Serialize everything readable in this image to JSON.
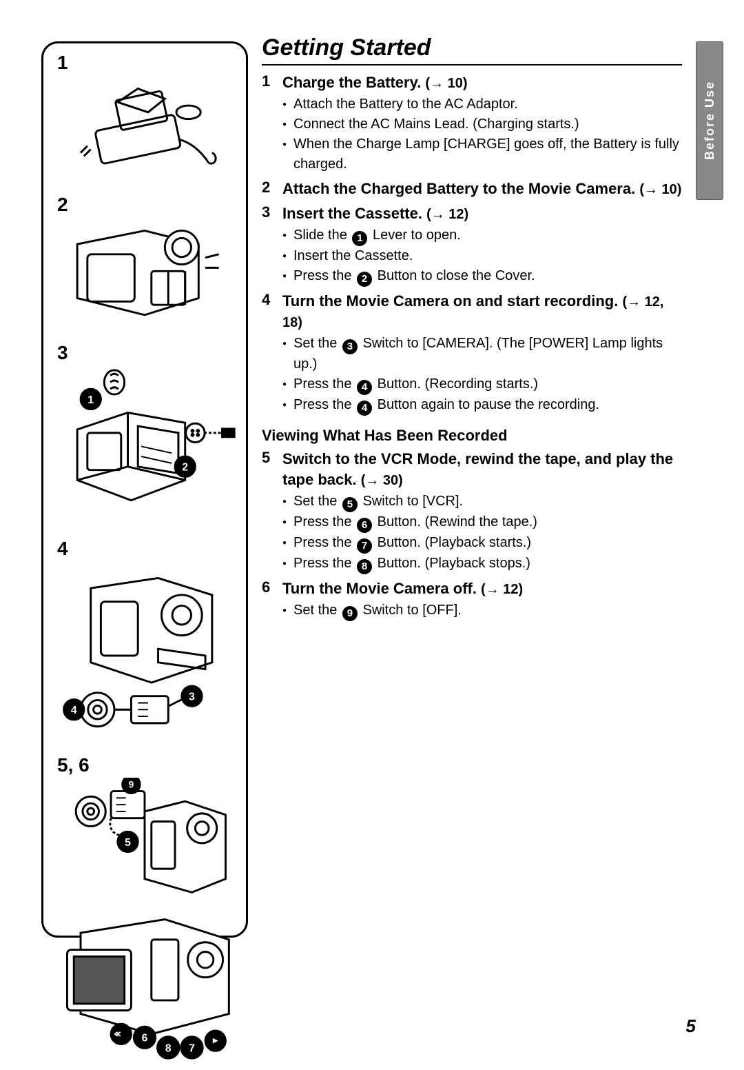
{
  "page_number": "5",
  "side_tab": "Before Use",
  "title": "Getting Started",
  "arrow": "→",
  "illus_labels": [
    "1",
    "2",
    "3",
    "4",
    "5, 6"
  ],
  "steps": [
    {
      "num": "1",
      "head": "Charge the Battery.",
      "ref": "(→ 10)",
      "sub": [
        {
          "pre": "Attach the Battery to the AC Adaptor."
        },
        {
          "pre": "Connect the AC Mains Lead. (Charging starts.)"
        },
        {
          "pre": "When the Charge Lamp [CHARGE] goes off, the Battery is fully charged."
        }
      ]
    },
    {
      "num": "2",
      "head": "Attach the Charged Battery to the Movie Camera.",
      "ref": "(→ 10)",
      "sub": []
    },
    {
      "num": "3",
      "head": "Insert the Cassette.",
      "ref": "(→ 12)",
      "sub": [
        {
          "pre": "Slide the ",
          "circ": "1",
          "post": " Lever to open."
        },
        {
          "pre": "Insert the Cassette."
        },
        {
          "pre": "Press the ",
          "circ": "2",
          "post": " Button to close the Cover."
        }
      ]
    },
    {
      "num": "4",
      "head": "Turn the Movie Camera on and start recording.",
      "ref": "(→ 12, 18)",
      "sub": [
        {
          "pre": "Set the ",
          "circ": "3",
          "post": " Switch to [CAMERA]. (The [POWER] Lamp lights up.)"
        },
        {
          "pre": "Press the ",
          "circ": "4",
          "post": " Button. (Recording starts.)"
        },
        {
          "pre": "Press the ",
          "circ": "4",
          "post": " Button again to pause the recording."
        }
      ]
    }
  ],
  "subtitle": "Viewing What Has Been Recorded",
  "steps2": [
    {
      "num": "5",
      "head": "Switch to the VCR Mode, rewind the tape, and play the tape back.",
      "ref": "(→ 30)",
      "sub": [
        {
          "pre": "Set the ",
          "circ": "5",
          "post": " Switch to [VCR]."
        },
        {
          "pre": "Press the ",
          "circ": "6",
          "post": " Button. (Rewind the tape.)"
        },
        {
          "pre": "Press the ",
          "circ": "7",
          "post": " Button. (Playback starts.)"
        },
        {
          "pre": "Press the ",
          "circ": "8",
          "post": " Button. (Playback stops.)"
        }
      ]
    },
    {
      "num": "6",
      "head": "Turn the Movie Camera off.",
      "ref": "(→ 12)",
      "sub": [
        {
          "pre": "Set the ",
          "circ": "9",
          "post": " Switch to [OFF]."
        }
      ]
    }
  ]
}
